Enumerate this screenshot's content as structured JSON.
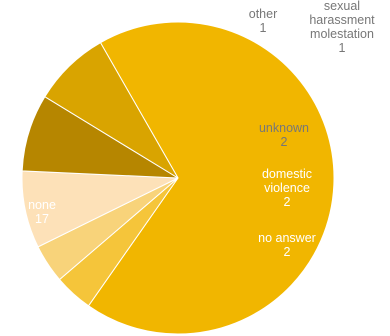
{
  "chart_data": {
    "type": "pie",
    "title": "",
    "categories": [
      "none",
      "other",
      "sexual harassment molestation",
      "unknown",
      "domestic violence",
      "no answer"
    ],
    "values": [
      17,
      1,
      1,
      2,
      2,
      2
    ],
    "colors": [
      "#f1b600",
      "#f5c53a",
      "#f8d37a",
      "#fde1b8",
      "#b68600",
      "#d9a400"
    ],
    "label_colors": [
      "#ffffff",
      "#777777",
      "#777777",
      "#777777",
      "#ffffff",
      "#ffffff"
    ],
    "labels": [
      {
        "lines": [
          "none",
          "17"
        ]
      },
      {
        "lines": [
          "other",
          "1"
        ]
      },
      {
        "lines": [
          "sexual",
          "harassment",
          "molestation",
          "1"
        ]
      },
      {
        "lines": [
          "unknown",
          "2"
        ]
      },
      {
        "lines": [
          "domestic",
          "violence",
          "2"
        ]
      },
      {
        "lines": [
          "no answer",
          "2"
        ]
      }
    ],
    "legend": "none"
  }
}
